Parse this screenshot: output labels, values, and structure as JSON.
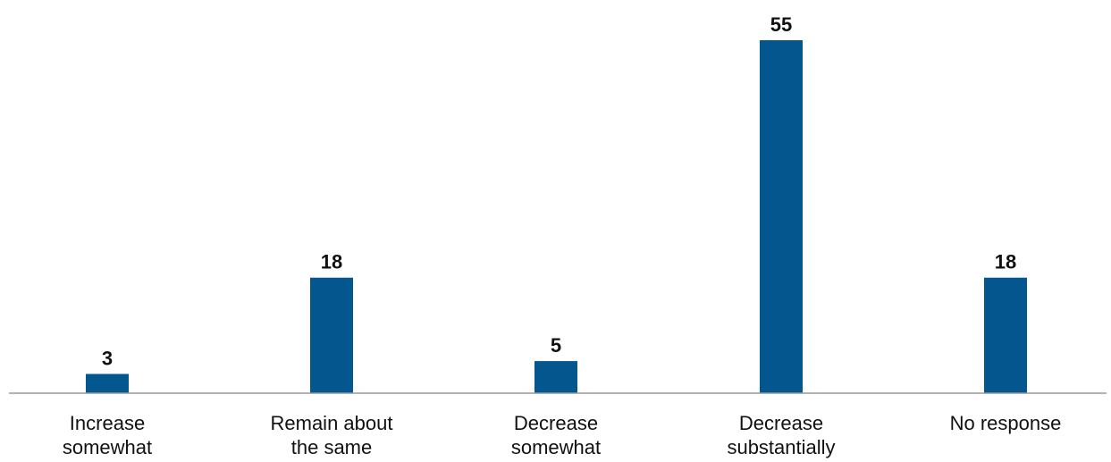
{
  "chart_data": {
    "type": "bar",
    "categories": [
      [
        "Increase",
        "somewhat"
      ],
      [
        "Remain about",
        "the same"
      ],
      [
        "Decrease",
        "somewhat"
      ],
      [
        "Decrease",
        "substantially"
      ],
      [
        "No response"
      ]
    ],
    "values": [
      3,
      18,
      5,
      55,
      18
    ],
    "data_labels": [
      "3",
      "18",
      "5",
      "55",
      "18"
    ],
    "title": "",
    "xlabel": "",
    "ylabel": "",
    "ylim": [
      0,
      55
    ],
    "grid": false,
    "legend": "none",
    "bar_color": "#03568e",
    "axis_color": "#999999"
  }
}
